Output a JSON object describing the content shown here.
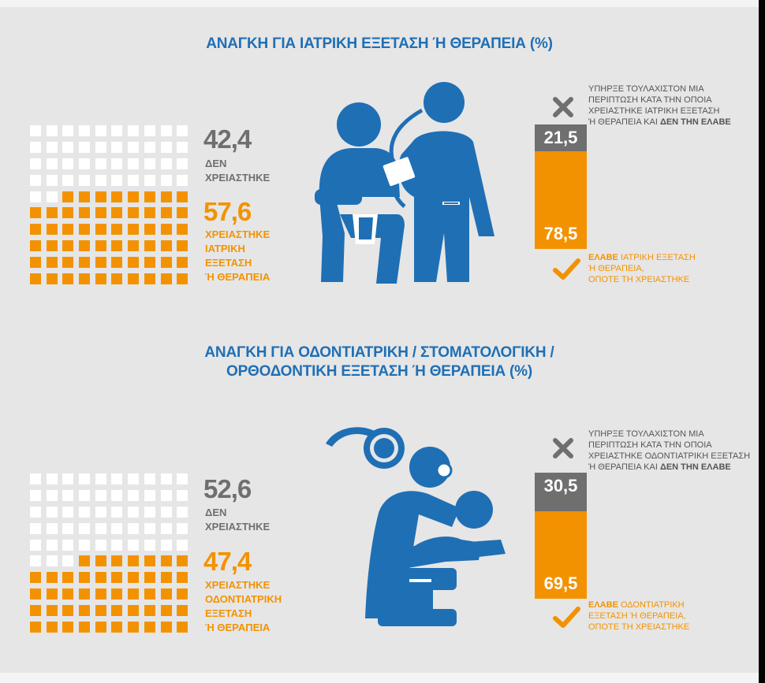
{
  "colors": {
    "orange": "#f39200",
    "gray": "#6f6f6f",
    "blue": "#1f6fb5",
    "background": "#e6e6e6"
  },
  "chart_data": [
    {
      "type": "waffle",
      "title": "ΑΝΑΓΚΗ ΓΙΑ ΙΑΤΡΙΚΗ ΕΞΕΤΑΣΗ Ή ΘΕΡΑΠΕΙΑ (%)",
      "categories": [
        "ΔΕΝ ΧΡΕΙΑΣΤΗΚΕ",
        "ΧΡΕΙΑΣΤΗΚΕ ΙΑΤΡΙΚΗ ΕΞΕΤΑΣΗ Ή ΘΕΡΑΠΕΙΑ"
      ],
      "values": [
        42.4,
        57.6
      ],
      "labels": [
        "42,4",
        "57,6"
      ],
      "label_lines": [
        [
          "ΔΕΝ",
          "ΧΡΕΙΑΣΤΗΚΕ"
        ],
        [
          "ΧΡΕΙΑΣΤΗΚΕ",
          "ΙΑΤΡΙΚΗ",
          "ΕΞΕΤΑΣΗ",
          "Ή ΘΕΡΑΠΕΙΑ"
        ]
      ],
      "grid_filled": 58,
      "icon": "doctor-patient-icon",
      "stacked_bar": {
        "series": [
          {
            "name": "ΔΕΝ ΤΗΝ ΕΛΑΒΕ",
            "value": 21.5,
            "label": "21,5"
          },
          {
            "name": "ΕΛΑΒΕ",
            "value": 78.5,
            "label": "78,5"
          }
        ],
        "top_note": [
          "ΥΠΗΡΞΕ ΤΟΥΛΑΧΙΣΤΟΝ ΜΙΑ",
          "ΠΕΡΙΠΤΩΣΗ ΚΑΤΑ ΤΗΝ ΟΠΟΙΑ",
          "ΧΡΕΙΑΣΤΗΚΕ ΙΑΤΡΙΚΗ ΕΞΕΤΑΣΗ",
          "Ή ΘΕΡΑΠΕΙΑ ΚΑΙ "
        ],
        "top_note_bold": "ΔΕΝ ΤΗΝ ΕΛΑΒΕ",
        "bottom_note_bold": "ΕΛΑΒΕ",
        "bottom_note": [
          " ΙΑΤΡΙΚΗ ΕΞΕΤΑΣΗ",
          "Ή ΘΕΡΑΠΕΙΑ,",
          "ΟΠΟΤΕ ΤΗ ΧΡΕΙΑΣΤΗΚΕ"
        ]
      }
    },
    {
      "type": "waffle",
      "title_lines": [
        "ΑΝΑΓΚΗ ΓΙΑ ΟΔΟΝΤΙΑΤΡΙΚΗ / ΣΤΟΜΑΤΟΛΟΓΙΚΗ /",
        "ΟΡΘΟΔΟΝΤΙΚΗ ΕΞΕΤΑΣΗ Ή ΘΕΡΑΠΕΙΑ (%)"
      ],
      "categories": [
        "ΔΕΝ ΧΡΕΙΑΣΤΗΚΕ",
        "ΧΡΕΙΑΣΤΗΚΕ ΟΔΟΝΤΙΑΤΡΙΚΗ ΕΞΕΤΑΣΗ Ή ΘΕΡΑΠΕΙΑ"
      ],
      "values": [
        52.6,
        47.4
      ],
      "labels": [
        "52,6",
        "47,4"
      ],
      "label_lines": [
        [
          "ΔΕΝ",
          "ΧΡΕΙΑΣΤΗΚΕ"
        ],
        [
          "ΧΡΕΙΑΣΤΗΚΕ",
          "ΟΔΟΝΤΙΑΤΡΙΚΗ",
          "ΕΞΕΤΑΣΗ",
          "Ή ΘΕΡΑΠΕΙΑ"
        ]
      ],
      "grid_filled": 47,
      "icon": "dentist-patient-icon",
      "stacked_bar": {
        "series": [
          {
            "name": "ΔΕΝ ΤΗΝ ΕΛΑΒΕ",
            "value": 30.5,
            "label": "30,5"
          },
          {
            "name": "ΕΛΑΒΕ",
            "value": 69.5,
            "label": "69,5"
          }
        ],
        "top_note": [
          "ΥΠΗΡΞΕ ΤΟΥΛΑΧΙΣΤΟΝ ΜΙΑ",
          "ΠΕΡΙΠΤΩΣΗ ΚΑΤΑ ΤΗΝ ΟΠΟΙΑ",
          "ΧΡΕΙΑΣΤΗΚΕ ΟΔΟΝΤΙΑΤΡΙΚΗ ΕΞΕΤΑΣΗ",
          "Ή ΘΕΡΑΠΕΙΑ ΚΑΙ "
        ],
        "top_note_bold": "ΔΕΝ ΤΗΝ ΕΛΑΒΕ",
        "bottom_note_bold": "ΕΛΑΒΕ",
        "bottom_note": [
          " ΟΔΟΝΤΙΑΤΡΙΚΗ",
          "ΕΞΕΤΑΣΗ Ή ΘΕΡΑΠΕΙΑ,",
          "ΟΠΟΤΕ ΤΗ ΧΡΕΙΑΣΤΗΚΕ"
        ]
      }
    }
  ]
}
